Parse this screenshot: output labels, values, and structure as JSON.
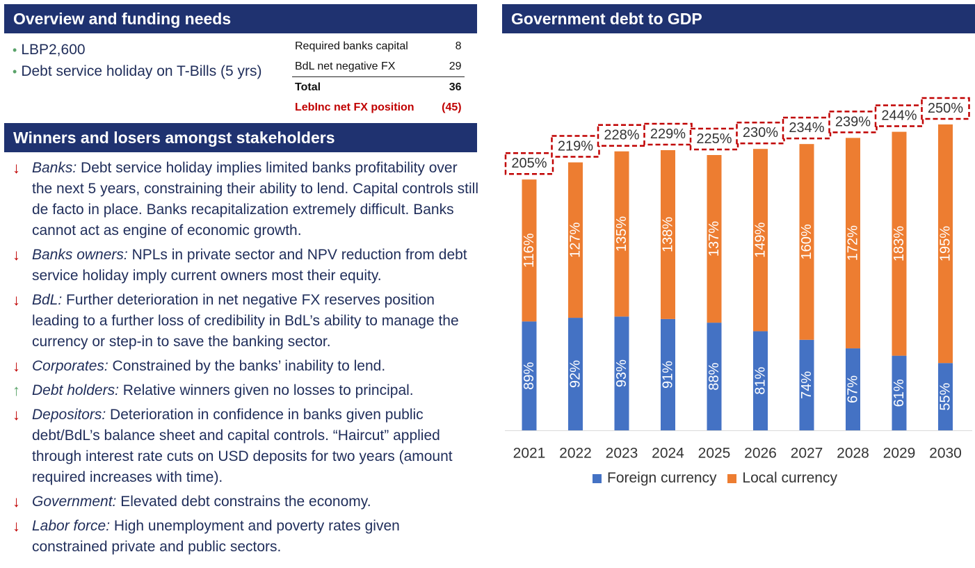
{
  "overview": {
    "title": "Overview and funding needs",
    "bullets": [
      "LBP2,600",
      "Debt service holiday on T-Bills (5 yrs)"
    ],
    "table": [
      {
        "label": "Required banks capital",
        "value": "8"
      },
      {
        "label": "BdL net negative FX",
        "value": "29"
      },
      {
        "label": "Total",
        "value": "36"
      },
      {
        "label": "LebInc net FX position",
        "value": "(45)"
      }
    ]
  },
  "winners": {
    "title": "Winners and losers amongst stakeholders",
    "items": [
      {
        "dir": "down",
        "label": "Banks:",
        "text": " Debt service holiday implies limited banks profitability over the next 5 years, constraining their ability to lend. Capital controls still de facto in place. Banks recapitalization extremely difficult. Banks cannot act as engine of economic growth."
      },
      {
        "dir": "down",
        "label": "Banks owners:",
        "text": " NPLs in private sector and NPV reduction from debt service holiday imply current owners most their equity."
      },
      {
        "dir": "down",
        "label": "BdL:",
        "text": " Further deterioration in net negative FX reserves position leading to a further loss of credibility in BdL’s ability to manage the currency or step-in to save the banking sector."
      },
      {
        "dir": "down",
        "label": "Corporates:",
        "text": " Constrained by the banks’ inability to lend."
      },
      {
        "dir": "up",
        "label": "Debt holders:",
        "text": " Relative winners given no losses to principal."
      },
      {
        "dir": "down",
        "label": "Depositors:",
        "text": " Deterioration in confidence in banks given public debt/BdL’s balance sheet and capital controls. “Haircut” applied through interest rate cuts on USD deposits for two years (amount required increases with time)."
      },
      {
        "dir": "down",
        "label": "Government:",
        "text": " Elevated debt constrains the economy."
      },
      {
        "dir": "down",
        "label": "Labor force:",
        "text": " High unemployment and poverty rates given constrained private and public sectors."
      }
    ]
  },
  "debt": {
    "title": "Government debt to GDP"
  },
  "chart_data": {
    "type": "bar",
    "stacked": true,
    "categories": [
      "2021",
      "2022",
      "2023",
      "2024",
      "2025",
      "2026",
      "2027",
      "2028",
      "2029",
      "2030"
    ],
    "series": [
      {
        "name": "Foreign currency",
        "color": "#4472c4",
        "values": [
          89,
          92,
          93,
          91,
          88,
          81,
          74,
          67,
          61,
          55
        ]
      },
      {
        "name": "Local currency",
        "color": "#ed7d31",
        "values": [
          116,
          127,
          135,
          138,
          137,
          149,
          160,
          172,
          183,
          195
        ]
      }
    ],
    "totals": [
      205,
      219,
      228,
      229,
      225,
      230,
      234,
      239,
      244,
      250
    ],
    "value_suffix": "%",
    "legend_position": "bottom",
    "grid": false,
    "ylim": [
      0,
      260
    ]
  }
}
